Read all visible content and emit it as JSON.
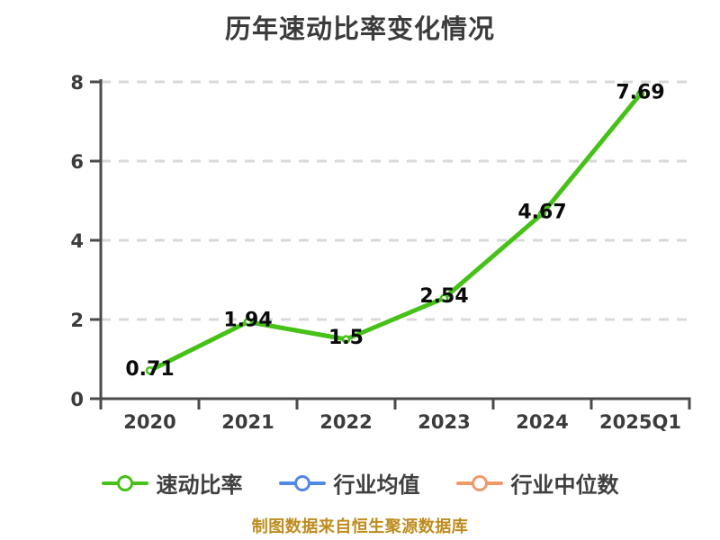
{
  "title": "历年速动比率变化情况",
  "footer": "制图数据来自恒生聚源数据库",
  "colors": {
    "title_text": "#3b3b3b",
    "footer_text": "#be8c1e",
    "axis": "#4a4a4a",
    "axis_label": "#3c3c3c",
    "grid": "#d9d9d9",
    "data_label": "#0a0a0a",
    "quick_ratio_green": "#46c117",
    "industry_avg_blue": "#5088e8",
    "industry_median_orange": "#f09a6a"
  },
  "legend": {
    "items": [
      {
        "label": "速动比率",
        "color": "#46c117"
      },
      {
        "label": "行业均值",
        "color": "#5088e8"
      },
      {
        "label": "行业中位数",
        "color": "#f09a6a"
      }
    ]
  },
  "chart_data": {
    "type": "line",
    "title": "历年速动比率变化情况",
    "categories": [
      "2020",
      "2021",
      "2022",
      "2023",
      "2024",
      "2025Q1"
    ],
    "series": [
      {
        "name": "速动比率",
        "color": "#46c117",
        "values": [
          0.71,
          1.94,
          1.5,
          2.54,
          4.67,
          7.69
        ]
      }
    ],
    "data_labels": [
      "0.71",
      "1.94",
      "1.5",
      "2.54",
      "4.67",
      "7.69"
    ],
    "xlabel": "",
    "ylabel": "",
    "ylim": [
      0,
      8
    ],
    "yticks": [
      0,
      2,
      4,
      6,
      8
    ],
    "grid": true,
    "grid_style": "dashed",
    "legend_position": "bottom",
    "marker": "white-circle"
  }
}
